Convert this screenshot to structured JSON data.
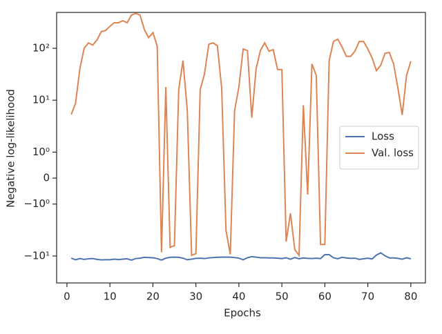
{
  "chart_data": {
    "type": "line",
    "xlabel": "Epochs",
    "ylabel": "Negative log-likelihood",
    "x": [
      1,
      2,
      3,
      4,
      5,
      6,
      7,
      8,
      9,
      10,
      11,
      12,
      13,
      14,
      15,
      16,
      17,
      18,
      19,
      20,
      21,
      22,
      23,
      24,
      25,
      26,
      27,
      28,
      29,
      30,
      31,
      32,
      33,
      34,
      35,
      36,
      37,
      38,
      39,
      40,
      41,
      42,
      43,
      44,
      45,
      46,
      47,
      48,
      49,
      50,
      51,
      52,
      53,
      54,
      55,
      56,
      57,
      58,
      59,
      60,
      61,
      62,
      63,
      64,
      65,
      66,
      67,
      68,
      69,
      70,
      71,
      72,
      73,
      74,
      75,
      76,
      77,
      78,
      79,
      80
    ],
    "series": [
      {
        "name": "Loss",
        "color": "#4c72b0",
        "values": [
          -11,
          -11.8,
          -11.2,
          -11.6,
          -11.3,
          -11.2,
          -11.6,
          -11.9,
          -11.8,
          -11.8,
          -11.5,
          -11.7,
          -11.5,
          -11.3,
          -12,
          -11.2,
          -11,
          -10.6,
          -10.7,
          -10.8,
          -11.2,
          -12,
          -11,
          -10.6,
          -10.5,
          -10.6,
          -11,
          -11.8,
          -11.5,
          -11.1,
          -11,
          -11.2,
          -10.9,
          -10.7,
          -10.6,
          -10.5,
          -10.5,
          -10.5,
          -10.7,
          -11,
          -11.8,
          -10.8,
          -10.3,
          -10.5,
          -10.8,
          -10.8,
          -10.9,
          -10.9,
          -11,
          -11.2,
          -10.8,
          -11.5,
          -10.7,
          -11.3,
          -10.9,
          -11.1,
          -11.2,
          -11,
          -11.2,
          -9.4,
          -9.4,
          -10.8,
          -11.3,
          -10.6,
          -10.9,
          -11.1,
          -11,
          -11.6,
          -11.3,
          -11,
          -11.4,
          -9.6,
          -8.7,
          -9.9,
          -10.9,
          -10.9,
          -11.1,
          -11.5,
          -10.8,
          -11.3
        ]
      },
      {
        "name": "Val. loss",
        "color": "#dd8452",
        "values": [
          5.3,
          8.7,
          40,
          100,
          127,
          115,
          145,
          210,
          220,
          265,
          310,
          310,
          340,
          310,
          435,
          470,
          435,
          230,
          160,
          200,
          110,
          -8.5,
          18,
          -6.8,
          -6.3,
          16,
          58,
          6.3,
          -9.7,
          -9,
          16,
          32,
          120,
          127,
          112,
          17,
          -3.2,
          -9.3,
          6.3,
          18,
          97,
          90,
          4.6,
          40,
          90,
          127,
          88,
          94,
          39,
          39,
          -5.3,
          -1.5,
          -7.5,
          -9.7,
          8,
          -0.634,
          50,
          30,
          -6,
          -6,
          58,
          135,
          150,
          106,
          70,
          70,
          88,
          135,
          135,
          97,
          65,
          37,
          47,
          80,
          83,
          50,
          17,
          5.2,
          30,
          56
        ]
      }
    ],
    "xlim": [
      -2.4,
      83.4
    ],
    "xticks": [
      0,
      10,
      20,
      30,
      40,
      50,
      60,
      70,
      80
    ],
    "yscale": "symlog",
    "linthresh": 1,
    "ylim": [
      -33,
      490
    ],
    "yticks": [
      {
        "value": 100,
        "label": "10²"
      },
      {
        "value": 10,
        "label": "10¹"
      },
      {
        "value": 1,
        "label": "10⁰"
      },
      0,
      {
        "value": -1,
        "label": "−10⁰"
      },
      {
        "value": -10,
        "label": "−10¹"
      }
    ],
    "legend": "center right"
  }
}
